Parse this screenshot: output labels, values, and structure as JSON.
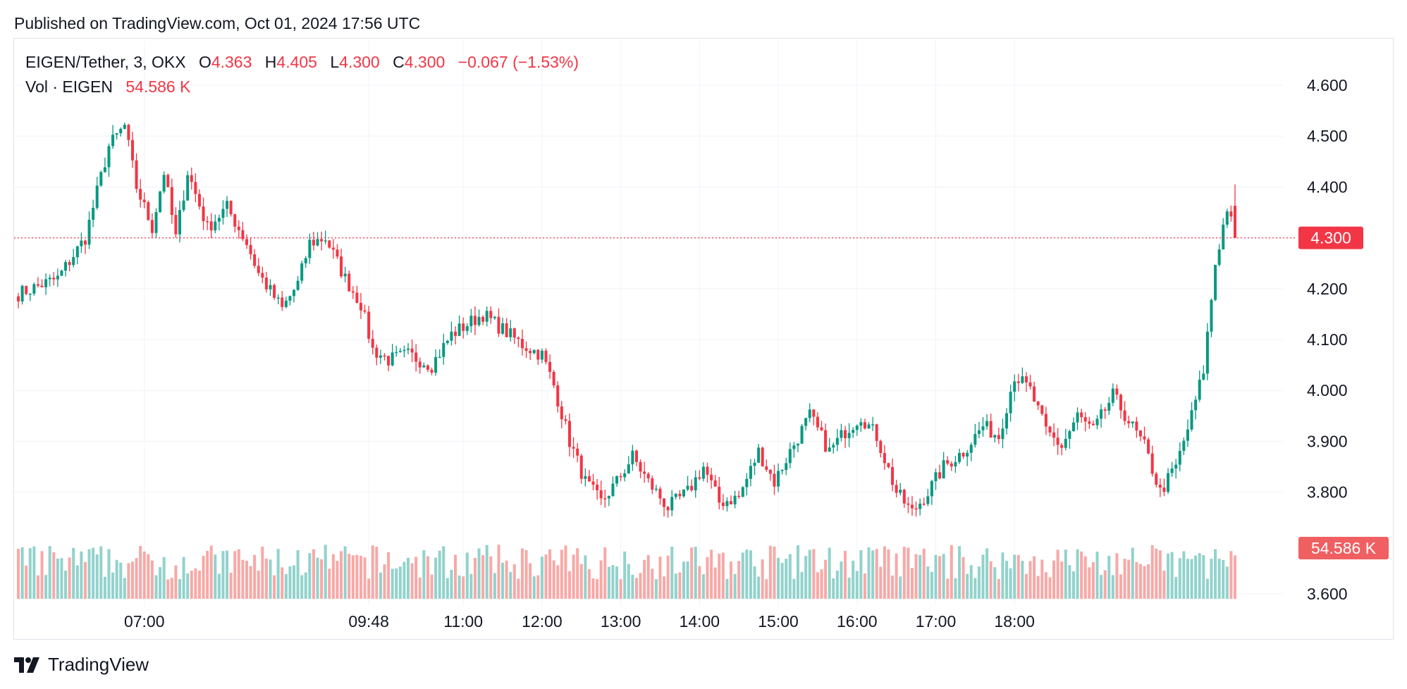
{
  "header": {
    "published": "Published on TradingView.com, Oct 01, 2024 17:56 UTC"
  },
  "legend": {
    "symbol": "EIGEN/Tether, 3, OKX",
    "o_label": "O",
    "o_value": "4.363",
    "h_label": "H",
    "h_value": "4.405",
    "l_label": "L",
    "l_value": "4.300",
    "c_label": "C",
    "c_value": "4.300",
    "change": "−0.067 (−1.53%)",
    "vol_label": "Vol · EIGEN",
    "vol_value": "54.586 K"
  },
  "brand": {
    "name": "TradingView",
    "logo_icon": "tradingview-logo-icon"
  },
  "colors": {
    "up": "#089981",
    "down": "#f23645",
    "up_vol": "#92d2cc",
    "down_vol": "#f7a9a7",
    "grid": "#f0f3fa"
  },
  "chart_data": {
    "type": "candlestick",
    "ylim": [
      3.6,
      4.6
    ],
    "y_ticks": [
      3.6,
      3.8,
      3.9,
      4.0,
      4.1,
      4.2,
      4.3,
      4.4,
      4.5,
      4.6
    ],
    "x_ticks": [
      {
        "label": "07:00",
        "t": "06:57"
      },
      {
        "label": "09:48",
        "t": "09:48"
      },
      {
        "label": "11:00",
        "t": "11:00"
      },
      {
        "label": "12:00",
        "t": "12:00"
      },
      {
        "label": "13:00",
        "t": "13:00"
      },
      {
        "label": "14:00",
        "t": "14:00"
      },
      {
        "label": "15:00",
        "t": "15:00"
      },
      {
        "label": "16:00",
        "t": "16:00"
      },
      {
        "label": "17:00",
        "t": "17:00"
      },
      {
        "label": "18:00",
        "t": "18:00"
      }
    ],
    "last_price": 4.3,
    "last_price_label": "4.300",
    "last_volume_label": "54.586 K",
    "points": [
      {
        "t": "05:21",
        "c": 4.19
      },
      {
        "t": "05:51",
        "c": 4.22
      },
      {
        "t": "06:12",
        "c": 4.3
      },
      {
        "t": "06:21",
        "c": 4.39
      },
      {
        "t": "06:30",
        "c": 4.48
      },
      {
        "t": "06:42",
        "c": 4.52
      },
      {
        "t": "06:51",
        "c": 4.4
      },
      {
        "t": "07:03",
        "c": 4.32
      },
      {
        "t": "07:12",
        "c": 4.43
      },
      {
        "t": "07:21",
        "c": 4.3
      },
      {
        "t": "07:30",
        "c": 4.43
      },
      {
        "t": "07:45",
        "c": 4.32
      },
      {
        "t": "08:00",
        "c": 4.36
      },
      {
        "t": "08:15",
        "c": 4.29
      },
      {
        "t": "08:24",
        "c": 4.23
      },
      {
        "t": "08:42",
        "c": 4.16
      },
      {
        "t": "08:54",
        "c": 4.21
      },
      {
        "t": "09:03",
        "c": 4.29
      },
      {
        "t": "09:15",
        "c": 4.3
      },
      {
        "t": "09:30",
        "c": 4.22
      },
      {
        "t": "09:42",
        "c": 4.17
      },
      {
        "t": "09:51",
        "c": 4.08
      },
      {
        "t": "10:03",
        "c": 4.06
      },
      {
        "t": "10:18",
        "c": 4.07
      },
      {
        "t": "10:36",
        "c": 4.05
      },
      {
        "t": "10:51",
        "c": 4.11
      },
      {
        "t": "11:03",
        "c": 4.13
      },
      {
        "t": "11:15",
        "c": 4.15
      },
      {
        "t": "11:30",
        "c": 4.12
      },
      {
        "t": "11:45",
        "c": 4.09
      },
      {
        "t": "12:00",
        "c": 4.07
      },
      {
        "t": "12:09",
        "c": 4.01
      },
      {
        "t": "12:21",
        "c": 3.9
      },
      {
        "t": "12:33",
        "c": 3.82
      },
      {
        "t": "12:45",
        "c": 3.78
      },
      {
        "t": "12:57",
        "c": 3.82
      },
      {
        "t": "13:09",
        "c": 3.87
      },
      {
        "t": "13:21",
        "c": 3.82
      },
      {
        "t": "13:36",
        "c": 3.77
      },
      {
        "t": "13:51",
        "c": 3.8
      },
      {
        "t": "14:03",
        "c": 3.85
      },
      {
        "t": "14:15",
        "c": 3.78
      },
      {
        "t": "14:30",
        "c": 3.79
      },
      {
        "t": "14:45",
        "c": 3.88
      },
      {
        "t": "14:57",
        "c": 3.82
      },
      {
        "t": "15:09",
        "c": 3.88
      },
      {
        "t": "15:24",
        "c": 3.95
      },
      {
        "t": "15:39",
        "c": 3.88
      },
      {
        "t": "15:51",
        "c": 3.92
      },
      {
        "t": "16:03",
        "c": 3.95
      },
      {
        "t": "16:15",
        "c": 3.91
      },
      {
        "t": "16:30",
        "c": 3.8
      },
      {
        "t": "16:42",
        "c": 3.76
      },
      {
        "t": "16:54",
        "c": 3.8
      },
      {
        "t": "17:06",
        "c": 3.85
      },
      {
        "t": "17:21",
        "c": 3.88
      },
      {
        "t": "17:36",
        "c": 3.93
      },
      {
        "t": "17:48",
        "c": 3.91
      },
      {
        "t": "18:00",
        "c": 4.03
      },
      {
        "t": "18:12",
        "c": 4.0
      },
      {
        "t": "18:24",
        "c": 3.92
      },
      {
        "t": "18:36",
        "c": 3.89
      },
      {
        "t": "18:48",
        "c": 3.95
      },
      {
        "t": "19:00",
        "c": 3.92
      },
      {
        "t": "19:15",
        "c": 3.99
      },
      {
        "t": "19:27",
        "c": 3.94
      },
      {
        "t": "19:39",
        "c": 3.89
      },
      {
        "t": "19:51",
        "c": 3.8
      },
      {
        "t": "20:03",
        "c": 3.85
      },
      {
        "t": "20:15",
        "c": 3.95
      },
      {
        "t": "20:24",
        "c": 4.04
      },
      {
        "t": "20:33",
        "c": 4.25
      },
      {
        "t": "20:42",
        "c": 4.36
      },
      {
        "t": "20:48",
        "c": 4.3
      }
    ]
  }
}
